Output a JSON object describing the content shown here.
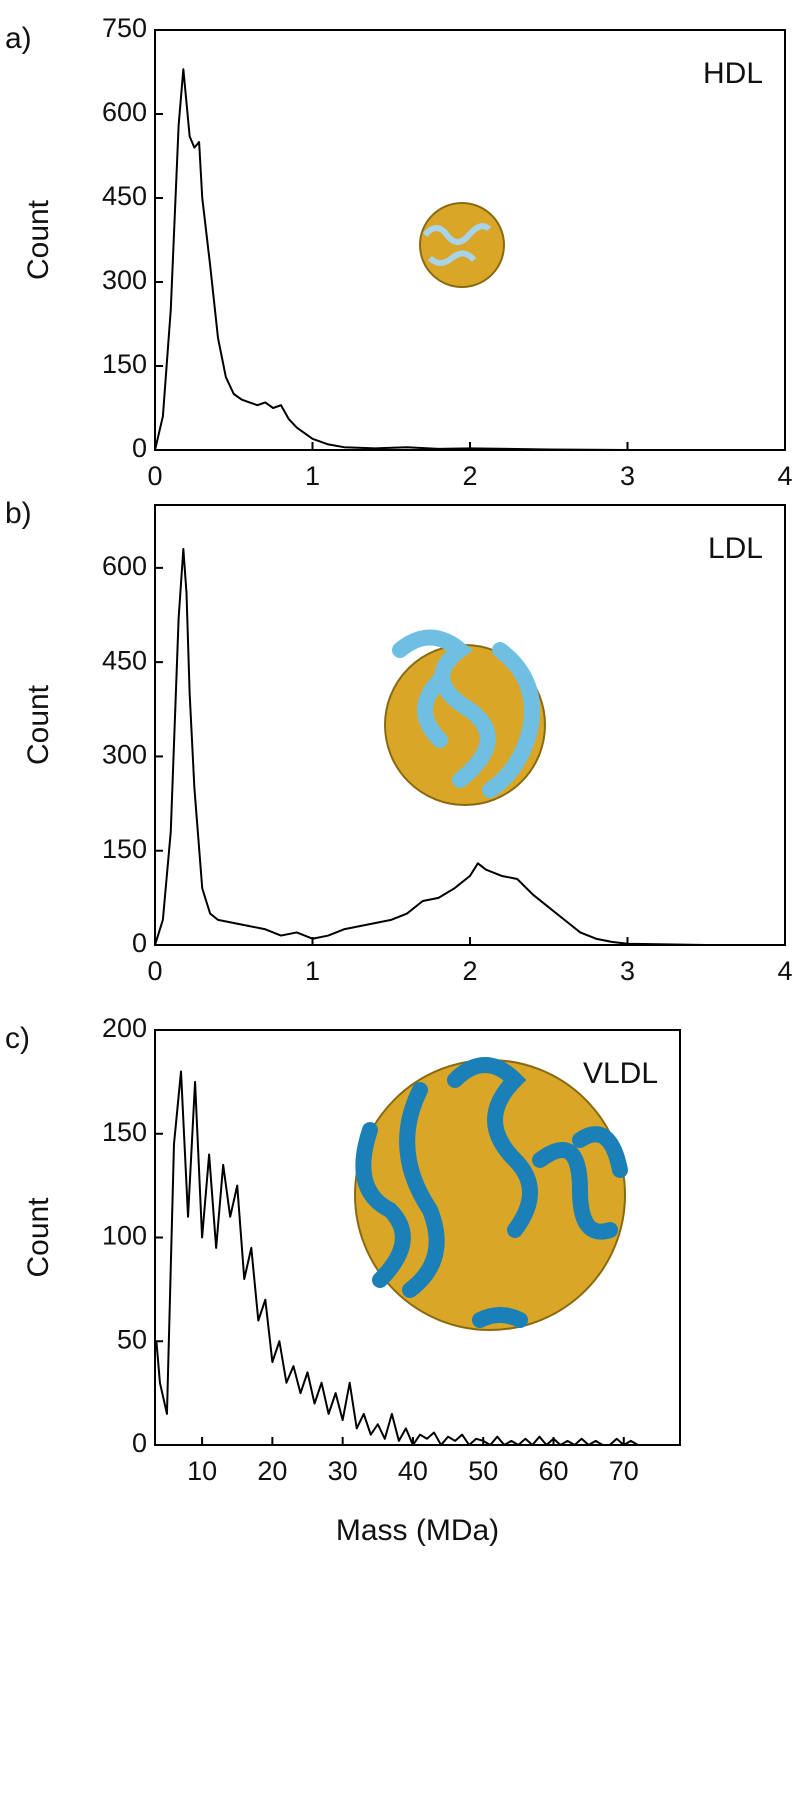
{
  "chart_data": [
    {
      "type": "line",
      "panel_label": "a)",
      "annotation": "HDL",
      "y_label": "Count",
      "xlim": [
        0,
        4
      ],
      "xticks": [
        0,
        1,
        2,
        3,
        4
      ],
      "ylim": [
        0,
        750
      ],
      "yticks": [
        0,
        150,
        300,
        450,
        600,
        750
      ],
      "grid": false,
      "color": "#000000",
      "x": [
        0,
        0.05,
        0.1,
        0.15,
        0.18,
        0.2,
        0.22,
        0.25,
        0.28,
        0.3,
        0.35,
        0.4,
        0.45,
        0.5,
        0.55,
        0.6,
        0.65,
        0.7,
        0.75,
        0.8,
        0.85,
        0.9,
        0.95,
        1.0,
        1.1,
        1.2,
        1.4,
        1.6,
        1.8,
        2.0,
        2.5,
        3.0,
        3.5,
        4.0
      ],
      "values": [
        0,
        60,
        250,
        580,
        680,
        620,
        560,
        540,
        550,
        450,
        330,
        200,
        130,
        100,
        90,
        85,
        80,
        85,
        75,
        80,
        55,
        40,
        30,
        20,
        10,
        5,
        3,
        5,
        2,
        3,
        1,
        0,
        0,
        0
      ]
    },
    {
      "type": "line",
      "panel_label": "b)",
      "annotation": "LDL",
      "y_label": "Count",
      "xlim": [
        0,
        4
      ],
      "xticks": [
        0,
        1,
        2,
        3,
        4
      ],
      "ylim": [
        0,
        700
      ],
      "yticks": [
        0,
        150,
        300,
        450,
        600
      ],
      "grid": false,
      "color": "#000000",
      "x": [
        0,
        0.05,
        0.1,
        0.15,
        0.18,
        0.2,
        0.22,
        0.25,
        0.3,
        0.35,
        0.4,
        0.5,
        0.6,
        0.7,
        0.8,
        0.9,
        1.0,
        1.1,
        1.2,
        1.3,
        1.4,
        1.5,
        1.6,
        1.7,
        1.8,
        1.9,
        2.0,
        2.05,
        2.1,
        2.2,
        2.3,
        2.4,
        2.5,
        2.6,
        2.7,
        2.8,
        2.9,
        3.0,
        3.5,
        4.0
      ],
      "values": [
        0,
        40,
        180,
        520,
        630,
        560,
        400,
        250,
        90,
        50,
        40,
        35,
        30,
        25,
        15,
        20,
        10,
        15,
        25,
        30,
        35,
        40,
        50,
        70,
        75,
        90,
        110,
        130,
        120,
        110,
        105,
        80,
        60,
        40,
        20,
        10,
        5,
        2,
        0,
        0
      ]
    },
    {
      "type": "line",
      "panel_label": "c)",
      "annotation": "VLDL",
      "y_label": "Count",
      "x_label": "Mass (MDa)",
      "xlim": [
        3.3,
        78
      ],
      "xticks": [
        10,
        20,
        30,
        40,
        50,
        60,
        70
      ],
      "ylim": [
        0,
        200
      ],
      "yticks": [
        0,
        50,
        100,
        150,
        200
      ],
      "grid": false,
      "color": "#000000",
      "x": [
        3.5,
        4,
        5,
        6,
        7,
        8,
        9,
        10,
        11,
        12,
        13,
        14,
        15,
        16,
        17,
        18,
        19,
        20,
        21,
        22,
        23,
        24,
        25,
        26,
        27,
        28,
        29,
        30,
        31,
        32,
        33,
        34,
        35,
        36,
        37,
        38,
        39,
        40,
        41,
        42,
        43,
        44,
        45,
        46,
        47,
        48,
        49,
        50,
        51,
        52,
        53,
        54,
        55,
        56,
        57,
        58,
        59,
        60,
        61,
        62,
        63,
        64,
        65,
        66,
        67,
        68,
        69,
        70,
        71,
        72,
        73,
        74,
        75
      ],
      "values": [
        50,
        30,
        15,
        145,
        180,
        110,
        175,
        100,
        140,
        95,
        135,
        110,
        125,
        80,
        95,
        60,
        70,
        40,
        50,
        30,
        38,
        25,
        35,
        20,
        30,
        15,
        25,
        12,
        30,
        8,
        15,
        5,
        10,
        3,
        15,
        2,
        8,
        0,
        5,
        3,
        6,
        0,
        4,
        2,
        5,
        0,
        3,
        2,
        0,
        4,
        0,
        2,
        0,
        3,
        0,
        4,
        0,
        3,
        0,
        2,
        0,
        3,
        0,
        2,
        0,
        0,
        3,
        0,
        2,
        0,
        0,
        0,
        0
      ]
    }
  ]
}
